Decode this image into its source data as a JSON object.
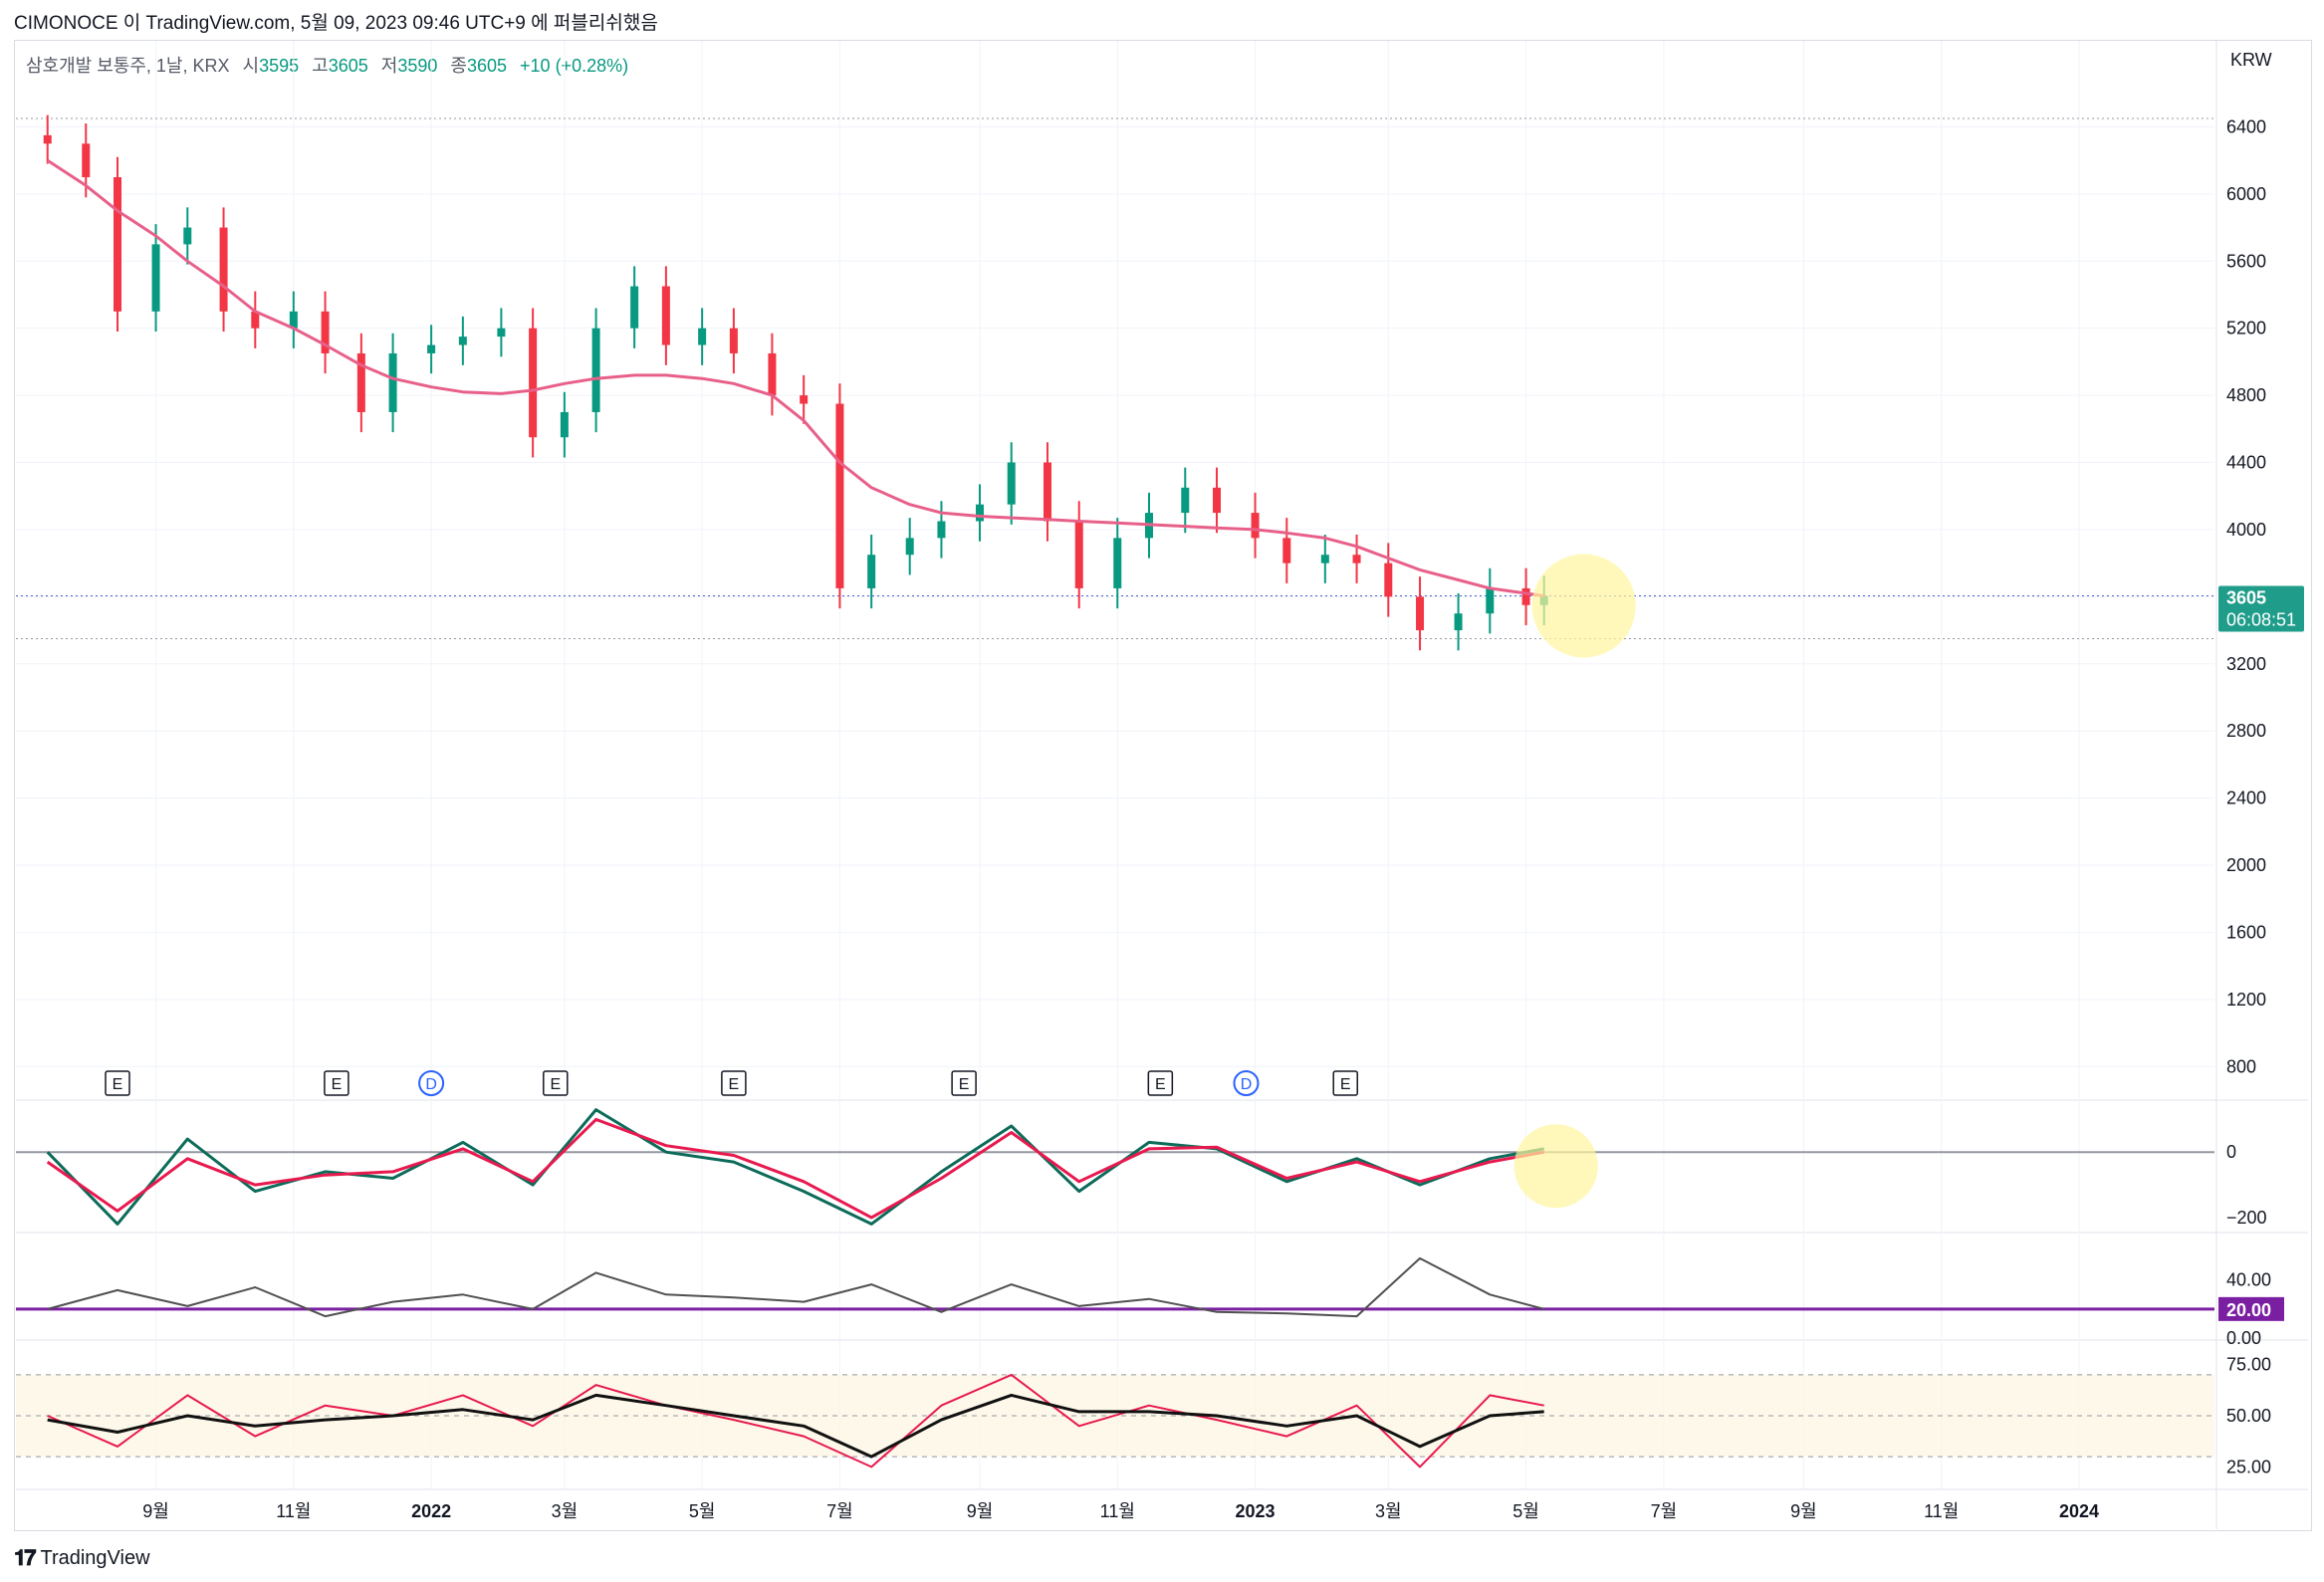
{
  "header": {
    "publish_text": "CIMONOCE 이 TradingView.com, 5월 09, 2023 09:46 UTC+9 에 퍼블리쉬했음"
  },
  "legend": {
    "symbol": "삼호개발 보통주, 1날, KRX",
    "open_label": "시",
    "open": "3595",
    "high_label": "고",
    "high": "3605",
    "low_label": "저",
    "low": "3590",
    "close_label": "종",
    "close": "3605",
    "change": "+10 (+0.28%)"
  },
  "currency": "KRW",
  "price_tag": {
    "price": "3605",
    "countdown": "06:08:51"
  },
  "rsi_level_tag": "20.00",
  "footer": {
    "brand": "TradingView"
  },
  "colors": {
    "up": "#089981",
    "down": "#f23645",
    "ma": "#e8608a",
    "macd": "#0d6b5a",
    "signal": "#e8194e",
    "adx": "#505050",
    "adx_level": "#7b1fa2",
    "rsi": "#e8194e",
    "rsi_ma": "#111111",
    "highlight": "#fff59d",
    "tag": "#1f9d8a"
  },
  "chart_data": [
    {
      "type": "candlestick",
      "title": "삼호개발 보통주, 1날, KRX",
      "x_ticks": [
        "9월",
        "11월",
        "2022",
        "3월",
        "5월",
        "7월",
        "9월",
        "11월",
        "2023",
        "3월",
        "5월",
        "7월",
        "9월",
        "11월",
        "2024"
      ],
      "y_ticks": [
        800,
        1200,
        1600,
        2000,
        2400,
        2800,
        3200,
        3600,
        4000,
        4400,
        4800,
        5200,
        5600,
        6000,
        6400
      ],
      "ylim": [
        600,
        6800
      ],
      "dates": [
        "2021-07-15",
        "2021-08-01",
        "2021-08-15",
        "2021-09-01",
        "2021-09-15",
        "2021-10-01",
        "2021-10-15",
        "2021-11-01",
        "2021-11-15",
        "2021-12-01",
        "2021-12-15",
        "2022-01-01",
        "2022-01-15",
        "2022-02-01",
        "2022-02-15",
        "2022-03-01",
        "2022-03-15",
        "2022-04-01",
        "2022-04-15",
        "2022-05-01",
        "2022-05-15",
        "2022-06-01",
        "2022-06-15",
        "2022-07-01",
        "2022-07-15",
        "2022-08-01",
        "2022-08-15",
        "2022-09-01",
        "2022-09-15",
        "2022-10-01",
        "2022-10-15",
        "2022-11-01",
        "2022-11-15",
        "2022-12-01",
        "2022-12-15",
        "2023-01-01",
        "2023-01-15",
        "2023-02-01",
        "2023-02-15",
        "2023-03-01",
        "2023-03-15",
        "2023-04-01",
        "2023-04-15",
        "2023-05-01",
        "2023-05-09"
      ],
      "close": [
        6300,
        6100,
        5300,
        5700,
        5800,
        5300,
        5200,
        5300,
        5050,
        4700,
        5050,
        5100,
        5150,
        5200,
        4550,
        4700,
        5200,
        5450,
        5100,
        5200,
        5050,
        4800,
        4750,
        3650,
        3850,
        3950,
        4050,
        4150,
        4400,
        4050,
        3650,
        3950,
        4100,
        4250,
        4100,
        3950,
        3800,
        3850,
        3800,
        3600,
        3400,
        3500,
        3650,
        3550,
        3605
      ],
      "ma_line": [
        6200,
        6050,
        5900,
        5750,
        5600,
        5450,
        5300,
        5200,
        5100,
        4980,
        4900,
        4850,
        4820,
        4810,
        4830,
        4870,
        4900,
        4920,
        4920,
        4900,
        4870,
        4800,
        4650,
        4400,
        4250,
        4150,
        4100,
        4080,
        4070,
        4060,
        4050,
        4040,
        4030,
        4020,
        4010,
        4000,
        3980,
        3950,
        3900,
        3830,
        3760,
        3700,
        3650,
        3620,
        3605
      ],
      "last_price": 3605,
      "marker_lines": [
        6450,
        3605,
        3350
      ],
      "events": [
        {
          "date": "2021-08-15",
          "label": "E"
        },
        {
          "date": "2021-11-20",
          "label": "E"
        },
        {
          "date": "2022-01-01",
          "label": "D"
        },
        {
          "date": "2022-02-25",
          "label": "E"
        },
        {
          "date": "2022-05-15",
          "label": "E"
        },
        {
          "date": "2022-08-25",
          "label": "E"
        },
        {
          "date": "2022-11-20",
          "label": "E"
        },
        {
          "date": "2022-12-28",
          "label": "D"
        },
        {
          "date": "2023-02-10",
          "label": "E"
        }
      ]
    },
    {
      "type": "line",
      "title": "MACD",
      "y_ticks": [
        0,
        -200
      ],
      "ylim": [
        -240,
        150
      ],
      "dates": [
        "2021-07-15",
        "2021-08-15",
        "2021-09-15",
        "2021-10-15",
        "2021-11-15",
        "2021-12-15",
        "2022-01-15",
        "2022-02-15",
        "2022-03-15",
        "2022-04-15",
        "2022-05-15",
        "2022-06-15",
        "2022-07-15",
        "2022-08-15",
        "2022-09-15",
        "2022-10-15",
        "2022-11-15",
        "2022-12-15",
        "2023-01-15",
        "2023-02-15",
        "2023-03-15",
        "2023-04-15",
        "2023-05-09"
      ],
      "series": [
        {
          "values": [
            0,
            -220,
            40,
            -120,
            -60,
            -80,
            30,
            -100,
            130,
            0,
            -30,
            -120,
            -220,
            -60,
            80,
            -120,
            30,
            10,
            -90,
            -20,
            -100,
            -20,
            10
          ]
        },
        {
          "values": [
            -30,
            -180,
            -20,
            -100,
            -70,
            -60,
            10,
            -90,
            100,
            20,
            -10,
            -90,
            -200,
            -80,
            60,
            -90,
            10,
            15,
            -80,
            -30,
            -90,
            -30,
            0
          ]
        }
      ]
    },
    {
      "type": "line",
      "title": "ADX",
      "y_ticks": [
        40,
        20,
        0
      ],
      "ylim": [
        0,
        70
      ],
      "level": 20,
      "dates": [
        "2021-07-15",
        "2021-08-15",
        "2021-09-15",
        "2021-10-15",
        "2021-11-15",
        "2021-12-15",
        "2022-01-15",
        "2022-02-15",
        "2022-03-15",
        "2022-04-15",
        "2022-05-15",
        "2022-06-15",
        "2022-07-15",
        "2022-08-15",
        "2022-09-15",
        "2022-10-15",
        "2022-11-15",
        "2022-12-15",
        "2023-01-15",
        "2023-02-15",
        "2023-03-15",
        "2023-04-15",
        "2023-05-09"
      ],
      "values": [
        20,
        33,
        22,
        35,
        15,
        25,
        30,
        20,
        45,
        30,
        28,
        25,
        37,
        18,
        37,
        22,
        27,
        18,
        17,
        15,
        55,
        30,
        20
      ]
    },
    {
      "type": "line",
      "title": "RSI",
      "y_ticks": [
        75,
        50,
        25
      ],
      "ylim": [
        15,
        85
      ],
      "band": [
        30,
        70
      ],
      "dates": [
        "2021-07-15",
        "2021-08-15",
        "2021-09-15",
        "2021-10-15",
        "2021-11-15",
        "2021-12-15",
        "2022-01-15",
        "2022-02-15",
        "2022-03-15",
        "2022-04-15",
        "2022-05-15",
        "2022-06-15",
        "2022-07-15",
        "2022-08-15",
        "2022-09-15",
        "2022-10-15",
        "2022-11-15",
        "2022-12-15",
        "2023-01-15",
        "2023-02-15",
        "2023-03-15",
        "2023-04-15",
        "2023-05-09"
      ],
      "series": [
        {
          "values": [
            50,
            35,
            60,
            40,
            55,
            50,
            60,
            45,
            65,
            55,
            48,
            40,
            25,
            55,
            70,
            45,
            55,
            48,
            40,
            55,
            25,
            60,
            55
          ]
        },
        {
          "values": [
            48,
            42,
            50,
            45,
            48,
            50,
            53,
            48,
            60,
            55,
            50,
            45,
            30,
            48,
            60,
            52,
            52,
            50,
            45,
            50,
            35,
            50,
            52
          ]
        }
      ]
    }
  ]
}
